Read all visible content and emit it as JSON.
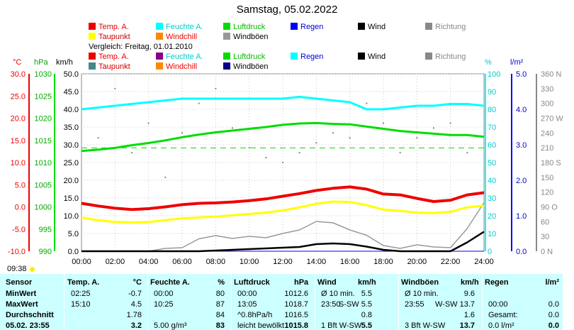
{
  "title": "Samstag, 05.02.2022",
  "colors": {
    "temp": "#ee0000",
    "humidity": "#00ffff",
    "pressure": "#00dd00",
    "rain": "#0000ff",
    "wind": "#000000",
    "direction": "#888888",
    "dew": "#ffff00",
    "windchill": "#ff8800",
    "gust": "#999999",
    "cmp_dew": "#448888",
    "cmp_humidity": "#880088",
    "cmp_gust": "#000088"
  },
  "legend": {
    "row1": [
      "Temp. A.",
      "Feuchte A.",
      "Luftdruck",
      "Regen",
      "Wind",
      "Richtung"
    ],
    "row2": [
      "Taupunkt",
      "Windchill",
      "Windböen"
    ],
    "compare_label": "Vergleich: Freitag, 01.01.2010",
    "row3": [
      "Temp. A.",
      "Feuchte A.",
      "Luftdruck",
      "Regen",
      "Wind",
      "Richtung"
    ],
    "row4": [
      "Taupunkt",
      "Windchill",
      "Windböen"
    ]
  },
  "axes": {
    "temp_unit": "°C",
    "hpa_unit": "hPa",
    "kmh_unit": "km/h",
    "pct_unit": "%",
    "rain_unit": "l/m²",
    "temp_ticks": [
      "30.0",
      "25.0",
      "20.0",
      "15.0",
      "10.0",
      "5.0",
      "0.0",
      "-5.0",
      "-10.0"
    ],
    "hpa_ticks": [
      "1030",
      "1025",
      "1020",
      "1015",
      "1010",
      "1005",
      "1000",
      "995",
      "990"
    ],
    "kmh_ticks": [
      "50.0",
      "45.0",
      "40.0",
      "35.0",
      "30.0",
      "25.0",
      "20.0",
      "15.0",
      "10.0",
      "5.0",
      "0.0"
    ],
    "pct_ticks": [
      "100",
      "90",
      "80",
      "70",
      "60",
      "50",
      "40",
      "30",
      "20",
      "10",
      "0"
    ],
    "rain_ticks": [
      "5.0",
      "4.0",
      "3.0",
      "2.0",
      "1.0",
      "0.0"
    ],
    "dir_ticks": [
      "360 N",
      "330",
      "300",
      "270 W",
      "240",
      "210",
      "180 S",
      "150",
      "120",
      "90 O",
      "60",
      "30",
      "0 N"
    ],
    "x_ticks": [
      "00:00",
      "02:00",
      "04:00",
      "06:00",
      "08:00",
      "10:00",
      "12:00",
      "14:00",
      "16:00",
      "18:00",
      "20:00",
      "22:00",
      "24:00"
    ],
    "sunrise": "09:38"
  },
  "chart_data": {
    "type": "line",
    "x_unit": "hour",
    "ylim_kmh": [
      0,
      50
    ],
    "ylim_temp": [
      -10,
      30
    ],
    "ylim_pct": [
      0,
      100
    ],
    "ylim_hpa": [
      990,
      1030
    ],
    "grid": true,
    "x": [
      0,
      1,
      2,
      3,
      4,
      5,
      6,
      7,
      8,
      9,
      10,
      11,
      12,
      13,
      14,
      15,
      16,
      17,
      18,
      19,
      20,
      21,
      22,
      23,
      24
    ],
    "series": [
      {
        "name": "Temp. A.",
        "axis": "temp",
        "values": [
          0.8,
          0.2,
          -0.3,
          -0.6,
          -0.4,
          0.0,
          0.5,
          0.8,
          0.9,
          1.1,
          1.4,
          1.8,
          2.4,
          3.0,
          3.7,
          4.2,
          4.5,
          4.0,
          2.9,
          2.7,
          1.9,
          1.2,
          1.5,
          2.7,
          3.2
        ]
      },
      {
        "name": "Taupunkt",
        "axis": "temp",
        "values": [
          -2.4,
          -3.0,
          -3.4,
          -3.5,
          -3.4,
          -3.0,
          -2.6,
          -2.4,
          -2.2,
          -1.9,
          -1.6,
          -1.3,
          -0.8,
          -0.1,
          0.7,
          1.2,
          1.1,
          0.4,
          -0.6,
          -0.9,
          -1.3,
          -1.4,
          -1.1,
          -0.1,
          0.3
        ]
      },
      {
        "name": "Feuchte A.",
        "axis": "pct",
        "values": [
          80,
          81,
          82,
          83,
          84,
          85,
          86,
          86,
          86,
          86,
          86,
          86,
          86,
          87,
          86,
          85,
          84,
          80,
          80,
          81,
          82,
          82,
          83,
          83,
          82
        ]
      },
      {
        "name": "Luftdruck",
        "axis": "hpa",
        "values": [
          1012.6,
          1012.9,
          1013.3,
          1013.9,
          1014.4,
          1015.0,
          1015.7,
          1016.3,
          1016.8,
          1017.2,
          1017.6,
          1018.0,
          1018.5,
          1018.8,
          1018.9,
          1018.7,
          1018.6,
          1018.1,
          1017.6,
          1017.1,
          1016.8,
          1016.5,
          1016.2,
          1016.2,
          1015.8
        ]
      },
      {
        "name": "Wind",
        "axis": "kmh",
        "values": [
          0,
          0,
          0,
          0,
          0,
          0,
          0,
          0,
          0.2,
          0.4,
          0.6,
          0.8,
          1.0,
          1.2,
          2.0,
          2.2,
          2.0,
          1.3,
          0.4,
          0,
          0,
          0,
          0,
          2.5,
          5.5
        ]
      },
      {
        "name": "Windböen",
        "axis": "kmh",
        "values": [
          0,
          0,
          0,
          0,
          0,
          0.8,
          1.0,
          3.5,
          4.4,
          3.6,
          4.2,
          3.8,
          5.0,
          6.0,
          8.4,
          8.0,
          6.0,
          4.5,
          1.6,
          0.8,
          1.8,
          1.2,
          1.0,
          6.4,
          13.7
        ]
      },
      {
        "name": "Regen",
        "axis": "rain",
        "values": [
          0,
          0,
          0,
          0,
          0,
          0,
          0,
          0,
          0,
          0,
          0,
          0,
          0,
          0,
          0,
          0,
          0,
          0,
          0,
          0,
          0,
          0,
          0,
          0,
          0
        ]
      },
      {
        "name": "Richtung",
        "axis": "dir",
        "values": [
          280,
          230,
          330,
          200,
          260,
          150,
          240,
          300,
          330,
          250,
          210,
          190,
          180,
          200,
          220,
          240,
          230,
          300,
          260,
          200,
          230,
          250,
          260,
          200,
          220
        ]
      }
    ],
    "reference": {
      "name": "Vergleich Luftdruck",
      "axis": "hpa",
      "values": [
        1013.3,
        1013.3
      ]
    }
  },
  "table": {
    "headers": [
      {
        "name": "Sensor",
        "unit": ""
      },
      {
        "name": "Temp. A.",
        "unit": "°C"
      },
      {
        "name": "Feuchte A.",
        "unit": "%"
      },
      {
        "name": "Luftdruck",
        "unit": "hPa"
      },
      {
        "name": "Wind",
        "unit": "km/h"
      },
      {
        "name": "Windböen",
        "unit": "km/h"
      },
      {
        "name": "Regen",
        "unit": "l/m²"
      }
    ],
    "rows": [
      {
        "label": "MinWert",
        "c": [
          [
            "02:25",
            "-0.7"
          ],
          [
            "00:00",
            "80"
          ],
          [
            "00:00",
            "1012.6"
          ],
          [
            "Ø 10 min.",
            "5.5"
          ],
          [
            "Ø 10 min.",
            "9.6"
          ],
          [
            "",
            ""
          ]
        ]
      },
      {
        "label": "MaxWert",
        "c": [
          [
            "15:10",
            "4.5"
          ],
          [
            "10:25",
            "87"
          ],
          [
            "13:05",
            "1018.7"
          ],
          [
            "23:50",
            "S-SW 5.5"
          ],
          [
            "23:55",
            "W-SW 13.7"
          ],
          [
            "00:00",
            "0.0"
          ]
        ]
      },
      {
        "label": "Durchschnitt",
        "c": [
          [
            "",
            "1.78"
          ],
          [
            "",
            "84"
          ],
          [
            "^0.8hPa/h",
            "1016.5"
          ],
          [
            "",
            "0.8"
          ],
          [
            "",
            "1.6"
          ],
          [
            "Gesamt:",
            "0.0"
          ]
        ]
      },
      {
        "label": "05.02. 23:55",
        "c": [
          [
            "",
            "3.2"
          ],
          [
            "5.00 g/m³",
            "83"
          ],
          [
            "leicht bewölkt",
            "1015.8"
          ],
          [
            "1 Bft W-SW",
            "5.5"
          ],
          [
            "3 Bft W-SW",
            "13.7"
          ],
          [
            "0.0 l/m²",
            "0.0"
          ]
        ]
      }
    ]
  }
}
